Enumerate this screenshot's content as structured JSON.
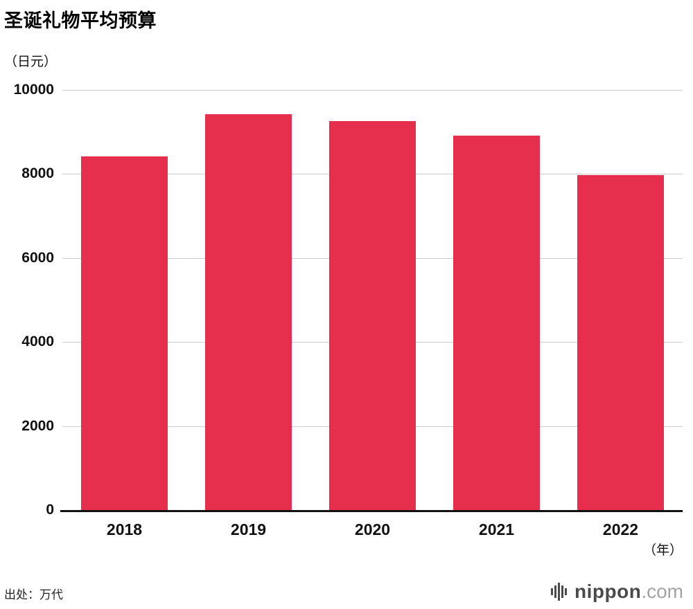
{
  "chart_data": {
    "type": "bar",
    "title": "圣诞礼物平均预算",
    "unit_label": "（日元）",
    "x_unit_label": "（年）",
    "categories": [
      "2018",
      "2019",
      "2020",
      "2021",
      "2022"
    ],
    "values": [
      8411,
      9419,
      9266,
      8907,
      7967
    ],
    "ylim": [
      0,
      10000
    ],
    "yticks": [
      0,
      2000,
      4000,
      6000,
      8000,
      10000
    ],
    "ylabel": "",
    "xlabel": "",
    "grid": true,
    "legend_position": "none",
    "bar_color": "#e62e4d",
    "gridline_color": "#cccccc",
    "axis_color": "#111111"
  },
  "footer": {
    "source": "出处：万代",
    "logo": {
      "text_main": "nippon",
      "text_suffix": ".com"
    }
  }
}
